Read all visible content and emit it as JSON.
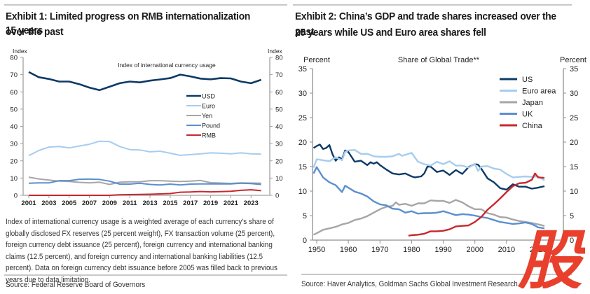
{
  "exhibit1": {
    "title_line1": "Exhibit 1: Limited progress on RMB internationalization over the past",
    "title_line2": "15 years",
    "note": "Index of international currency usage is a weighted average of each currency's share of globally disclosed FX reserves (25 percent weight), FX transaction volume (25 percent), foreign currency debt issuance (25 percent), foreign currency and international banking claims (12.5 percent), and foreign currency and international banking liabilities (12.5 percent). Data on foreign currency debt issuance before 2005 was filled back to previous years due to data limitation.",
    "source": "Source: Federal Reserve Board of Governors"
  },
  "exhibit2": {
    "title_line1": "Exhibit 2: China’s GDP and trade shares increased over the past",
    "title_line2": "25 years while US and Euro area shares fell",
    "source": "Source: Haver Analytics, Goldman Sachs Global Investment Research"
  },
  "watermark": {
    "glyph": "股",
    "color": "#e8402c"
  },
  "chart_data": [
    {
      "type": "line",
      "title": "Index of international currency usage",
      "ylabel": "Index",
      "ylabel_right": "Index",
      "ylim": [
        0,
        80
      ],
      "yticks": [
        0,
        10,
        20,
        30,
        40,
        50,
        60,
        70,
        80
      ],
      "xticks": [
        2001,
        2003,
        2005,
        2007,
        2009,
        2011,
        2013,
        2015,
        2017,
        2019,
        2021,
        2023
      ],
      "xlim": [
        2001,
        2024.3
      ],
      "grid": false,
      "legend": "center-right",
      "x": [
        2001,
        2002,
        2003,
        2004,
        2005,
        2006,
        2007,
        2008,
        2009,
        2010,
        2011,
        2012,
        2013,
        2014,
        2015,
        2016,
        2017,
        2018,
        2019,
        2020,
        2021,
        2022,
        2023,
        2024
      ],
      "series": [
        {
          "name": "USD",
          "color": "#0d3a66",
          "values": [
            71.5,
            68.5,
            67.5,
            66,
            66,
            64.5,
            62.5,
            61,
            63,
            65,
            66,
            65.5,
            66.5,
            67.2,
            68,
            70,
            69,
            67.7,
            67.3,
            68,
            67.8,
            66,
            65,
            67
          ]
        },
        {
          "name": "Euro",
          "color": "#a6cdee",
          "values": [
            23,
            26,
            28,
            28.3,
            27.5,
            28.6,
            29.6,
            31.4,
            31.2,
            28.3,
            26.5,
            26.3,
            25.2,
            25.6,
            24.4,
            23.2,
            23.6,
            24.1,
            24.6,
            24.4,
            24.1,
            24.6,
            24.1,
            23.9
          ]
        },
        {
          "name": "Yen",
          "color": "#a6a6a6",
          "values": [
            10.5,
            9.5,
            8.8,
            8.2,
            8,
            7.5,
            7.2,
            7.6,
            6.3,
            7.6,
            7.8,
            7.8,
            8.5,
            8.5,
            8.2,
            8,
            8.2,
            8.6,
            7.3,
            7.1,
            6.9,
            7.2,
            7.1,
            7
          ]
        },
        {
          "name": "Pound",
          "color": "#5b8fcf",
          "values": [
            7,
            7.2,
            7.2,
            8.5,
            8.5,
            9.3,
            9.4,
            9.2,
            8.2,
            6.5,
            6.5,
            7,
            6.3,
            6,
            6.5,
            6,
            6.5,
            6.6,
            6.6,
            6.6,
            6.6,
            7,
            6.8,
            6.3
          ]
        },
        {
          "name": "RMB",
          "color": "#c8282d",
          "values": [
            0,
            0,
            0,
            0,
            0,
            0,
            0,
            0,
            0,
            0.3,
            0.4,
            0.5,
            0.6,
            0.8,
            1,
            1.8,
            1.9,
            2.2,
            2,
            2.1,
            2.3,
            2.9,
            3.2,
            2.7
          ]
        }
      ]
    },
    {
      "type": "line",
      "title": "Share of Global Trade**",
      "ylabel": "Percent",
      "ylabel_right": "Percent",
      "ylim": [
        0,
        35
      ],
      "yticks": [
        0,
        5,
        10,
        15,
        20,
        25,
        30,
        35
      ],
      "xticks": [
        1950,
        1960,
        1970,
        1980,
        1990,
        2000,
        2010,
        2020
      ],
      "xlim": [
        1949,
        2023
      ],
      "grid": false,
      "legend": "top-right",
      "series": [
        {
          "name": "US",
          "color": "#0d3a66",
          "x": [
            1949,
            1950,
            1951,
            1952,
            1953,
            1954,
            1955,
            1956,
            1957,
            1958,
            1959,
            1960,
            1962,
            1964,
            1966,
            1967,
            1968,
            1969,
            1970,
            1972,
            1974,
            1976,
            1978,
            1980,
            1981,
            1983,
            1984,
            1985,
            1986,
            1988,
            1990,
            1992,
            1994,
            1996,
            1998,
            2000,
            2001,
            2002,
            2004,
            2006,
            2008,
            2010,
            2012,
            2014,
            2016,
            2018,
            2020,
            2022
          ],
          "values": [
            18.8,
            19.2,
            19.5,
            18.6,
            18.8,
            19.4,
            17.5,
            16.2,
            16.9,
            16.5,
            18.3,
            18,
            16,
            16.2,
            15.3,
            15.9,
            15.6,
            15.9,
            15.3,
            14.4,
            13.6,
            13.4,
            13.6,
            13,
            12.8,
            13,
            13.6,
            15,
            15,
            13.9,
            14.2,
            13.3,
            14.3,
            13.5,
            14.9,
            15.5,
            15.4,
            14.6,
            12.6,
            11.8,
            10.6,
            10.3,
            11.4,
            10.9,
            10.9,
            10.5,
            10.7,
            11
          ]
        },
        {
          "name": "Euro area",
          "color": "#a6cdee",
          "x": [
            1949,
            1950,
            1952,
            1954,
            1956,
            1958,
            1959,
            1960,
            1962,
            1964,
            1966,
            1968,
            1970,
            1972,
            1974,
            1976,
            1977,
            1978,
            1980,
            1982,
            1984,
            1986,
            1988,
            1990,
            1992,
            1994,
            1996,
            1998,
            2000,
            2001,
            2002,
            2004,
            2006,
            2008,
            2010,
            2012,
            2014,
            2016,
            2018,
            2020,
            2022
          ],
          "values": [
            14.8,
            16.5,
            16.3,
            16.1,
            16.9,
            16.3,
            18,
            18.3,
            18.4,
            17.6,
            17.6,
            17.1,
            17,
            17,
            17.1,
            17.6,
            17.2,
            17.4,
            17.8,
            16,
            15.5,
            15.2,
            16,
            15.5,
            16.1,
            15.2,
            15.2,
            14.8,
            15.5,
            14.1,
            15,
            15.1,
            14.6,
            14.4,
            13.5,
            12.8,
            12.9,
            13,
            12.9,
            13,
            12.2
          ]
        },
        {
          "name": "Japan",
          "color": "#a6a6a6",
          "x": [
            1949,
            1950,
            1952,
            1954,
            1956,
            1958,
            1960,
            1962,
            1964,
            1966,
            1968,
            1970,
            1972,
            1974,
            1975,
            1976,
            1978,
            1980,
            1982,
            1984,
            1986,
            1988,
            1990,
            1992,
            1994,
            1996,
            1998,
            2000,
            2002,
            2004,
            2006,
            2008,
            2010,
            2012,
            2014,
            2016,
            2018,
            2020,
            2022
          ],
          "values": [
            1.1,
            1.4,
            2.1,
            2.4,
            2.7,
            3.2,
            3.5,
            4.1,
            4.4,
            4.9,
            5.6,
            6.3,
            6.8,
            7,
            7.7,
            7.2,
            7.4,
            7,
            7.5,
            7.5,
            8.1,
            8,
            8,
            7.6,
            8.2,
            7.7,
            6.9,
            6.3,
            6.3,
            5.5,
            5.2,
            4.7,
            4.6,
            4.2,
            3.9,
            3.7,
            3.5,
            3.2,
            2.9
          ]
        },
        {
          "name": "UK",
          "color": "#5b8fcf",
          "x": [
            1949,
            1950,
            1952,
            1954,
            1956,
            1958,
            1959,
            1960,
            1962,
            1964,
            1966,
            1968,
            1970,
            1972,
            1974,
            1976,
            1978,
            1980,
            1982,
            1984,
            1986,
            1988,
            1990,
            1992,
            1994,
            1996,
            1998,
            2000,
            2002,
            2004,
            2006,
            2008,
            2010,
            2012,
            2014,
            2016,
            2018,
            2020,
            2022
          ],
          "values": [
            13.6,
            14.9,
            12.8,
            11.8,
            11.2,
            9.8,
            11.1,
            10.7,
            9.9,
            9.5,
            8.9,
            7.9,
            7.3,
            7.1,
            6.4,
            6.3,
            5.6,
            5.9,
            5.4,
            5.5,
            5.5,
            5.6,
            5.9,
            5.5,
            5.1,
            5.3,
            5.2,
            5,
            4.7,
            4.5,
            4.1,
            3.7,
            3.5,
            3.3,
            3.4,
            3.6,
            3.3,
            2.6,
            2.4
          ]
        },
        {
          "name": "China",
          "color": "#c8282d",
          "x": [
            1979,
            1980,
            1982,
            1984,
            1986,
            1988,
            1990,
            1992,
            1994,
            1996,
            1998,
            2000,
            2002,
            2004,
            2006,
            2008,
            2010,
            2012,
            2014,
            2016,
            2018,
            2019,
            2020,
            2022
          ],
          "values": [
            0.9,
            1,
            1.1,
            1.3,
            1.8,
            1.8,
            1.9,
            2.2,
            2.8,
            2.9,
            3,
            3.7,
            4.7,
            6.2,
            7.3,
            8.5,
            9.8,
            11,
            11.6,
            11.7,
            12.3,
            13.6,
            12.8,
            12.7
          ]
        }
      ]
    }
  ]
}
